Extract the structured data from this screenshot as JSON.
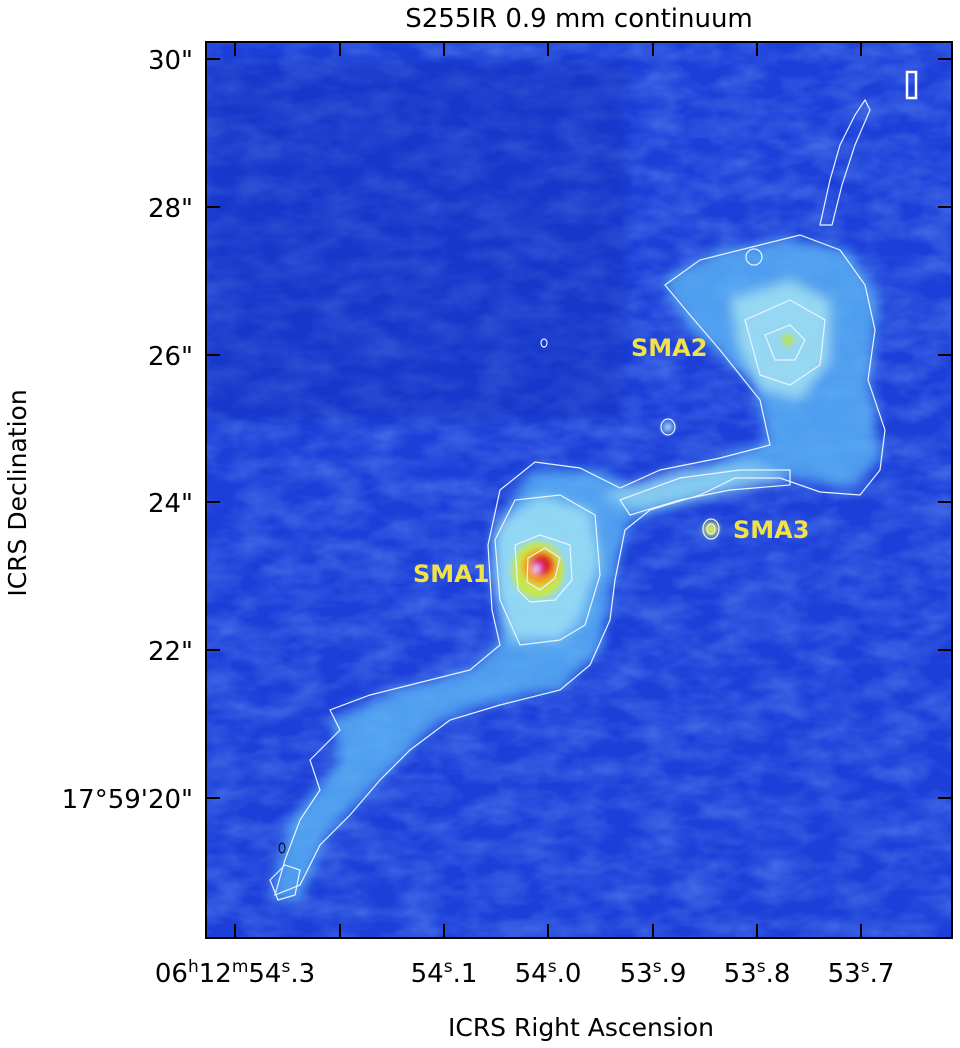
{
  "title": "S255IR 0.9 mm continuum",
  "axes": {
    "xlabel": "ICRS Right Ascension",
    "ylabel": "ICRS Declination"
  },
  "yticks": [
    {
      "label": "30\"",
      "dec_arcsec": 30
    },
    {
      "label": "28\"",
      "dec_arcsec": 28
    },
    {
      "label": "26\"",
      "dec_arcsec": 26
    },
    {
      "label": "24\"",
      "dec_arcsec": 24
    },
    {
      "label": "22\"",
      "dec_arcsec": 22
    },
    {
      "label": "17°59'20\"",
      "dec_arcsec": 20
    }
  ],
  "xticks": [
    {
      "pre": "06",
      "h": "h",
      "mid": "12",
      "m": "m",
      "sec": "54",
      "s": "s",
      "frac": ".3",
      "ra_sec": 54.3
    },
    {
      "sec": "54",
      "s": "s",
      "frac": ".1",
      "ra_sec": 54.1
    },
    {
      "sec": "54",
      "s": "s",
      "frac": ".0",
      "ra_sec": 54.0
    },
    {
      "sec": "53",
      "s": "s",
      "frac": ".9",
      "ra_sec": 53.9
    },
    {
      "sec": "53",
      "s": "s",
      "frac": ".8",
      "ra_sec": 53.8
    },
    {
      "sec": "53",
      "s": "s",
      "frac": ".7",
      "ra_sec": 53.7
    }
  ],
  "sources": [
    {
      "name": "SMA1",
      "ra_sec": 54.003,
      "dec_arcsec": 23.1
    },
    {
      "name": "SMA2",
      "ra_sec": 53.775,
      "dec_arcsec": 26.2
    },
    {
      "name": "SMA3",
      "ra_sec": 53.845,
      "dec_arcsec": 23.6
    }
  ],
  "colors": {
    "label": "#f2e24a",
    "contour": "#e8f4ff",
    "background": "#1e3fd8"
  }
}
